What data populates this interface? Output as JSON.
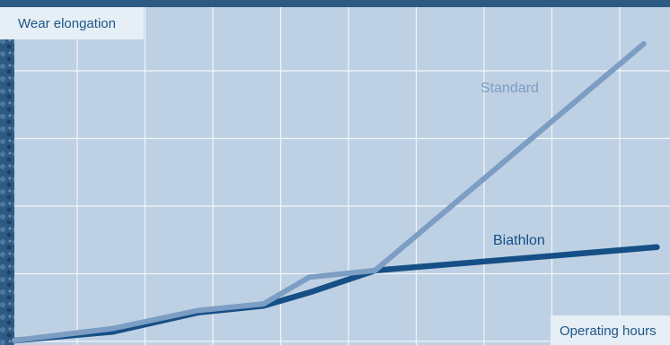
{
  "colors": {
    "plot_bg": "#bed0e3",
    "grid": "#f2f6fa",
    "frame_texture": "#3c6990",
    "standard_line": "#7c9dc4",
    "biathlon_line": "#154f86",
    "label_box_bg": "#e6eef6",
    "axis_text": "#1d5687"
  },
  "chart_data": {
    "type": "line",
    "title": "",
    "ylabel": "Wear elongation",
    "xlabel": "Operating hours",
    "xlim": [
      0,
      10
    ],
    "ylim": [
      0,
      5
    ],
    "grid": true,
    "axis_ticks_labeled": false,
    "series": [
      {
        "name": "Standard",
        "color": "#7c9dc4",
        "x": [
          0,
          1.5,
          2.8,
          3.8,
          4.5,
          5.5
        ],
        "y": [
          0,
          0.18,
          0.45,
          0.55,
          0.95,
          1.05
        ]
      },
      {
        "name": "Biathlon",
        "color": "#154f86",
        "x": [
          0,
          1.5,
          2.8,
          3.8,
          4.5,
          5.5
        ],
        "y": [
          0,
          0.13,
          0.42,
          0.52,
          0.72,
          1.05
        ]
      }
    ],
    "continuation": {
      "Standard": {
        "x": [
          9.6
        ],
        "y": [
          4.45
        ]
      },
      "Biathlon": {
        "x": [
          9.8
        ],
        "y": [
          1.4
        ]
      }
    }
  }
}
